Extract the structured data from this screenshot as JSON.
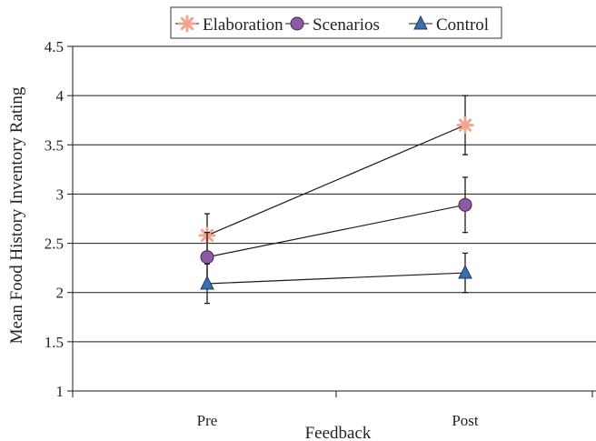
{
  "chart_data": {
    "type": "line",
    "title": "",
    "xlabel": "Feedback",
    "ylabel": "Mean Food History Inventory Rating",
    "categories": [
      "Pre",
      "Post"
    ],
    "ylim": [
      1,
      4.5
    ],
    "yticks": [
      "1",
      "1.5",
      "2",
      "2.5",
      "3",
      "3.5",
      "4",
      "4.5"
    ],
    "grid": true,
    "legend_position": "top-center",
    "series": [
      {
        "name": "Elaboration",
        "values": [
          2.58,
          3.7
        ],
        "errors": [
          0.22,
          0.3
        ],
        "marker": "asterisk",
        "color": "#f3a48c"
      },
      {
        "name": "Scenarios",
        "values": [
          2.36,
          2.89
        ],
        "errors": [
          0.25,
          0.28
        ],
        "marker": "circle",
        "color": "#8e5aa8"
      },
      {
        "name": "Control",
        "values": [
          2.09,
          2.2
        ],
        "errors": [
          0.2,
          0.2
        ],
        "marker": "triangle",
        "color": "#3a6eb0"
      }
    ]
  }
}
